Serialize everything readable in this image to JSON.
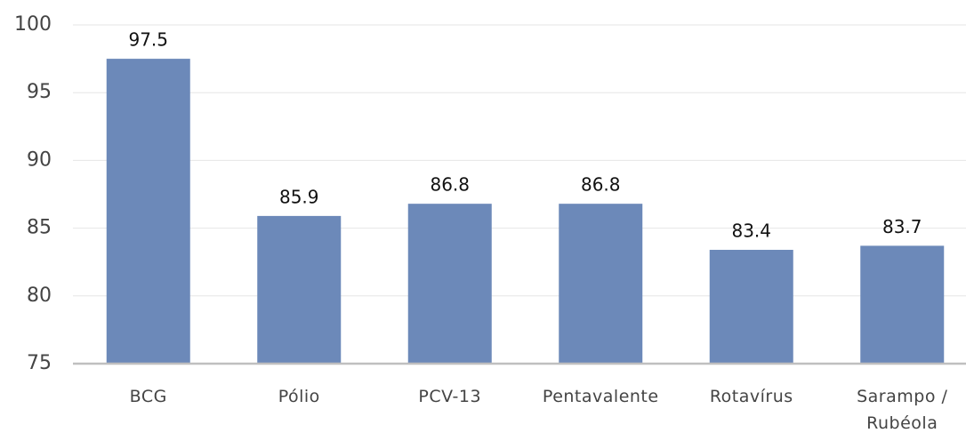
{
  "chart_data": {
    "type": "bar",
    "categories": [
      "BCG",
      "Pólio",
      "PCV-13",
      "Pentavalente",
      "Rotavírus",
      "Sarampo / Rubéola"
    ],
    "values": [
      97.5,
      85.9,
      86.8,
      86.8,
      83.4,
      83.7
    ],
    "color": "#6c89b9",
    "ylim": [
      75,
      100
    ],
    "yticks": [
      75,
      80,
      85,
      90,
      95,
      100
    ],
    "grid": true
  }
}
